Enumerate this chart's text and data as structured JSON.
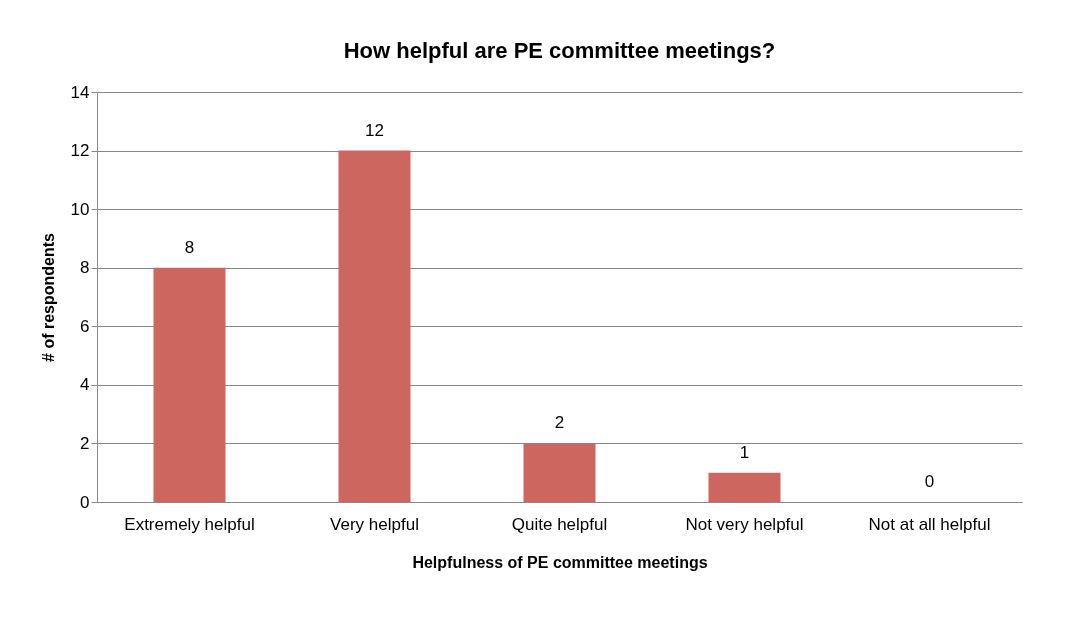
{
  "chart_data": {
    "type": "bar",
    "title": "How helpful are PE committee meetings?",
    "xlabel": "Helpfulness of PE committee meetings",
    "ylabel": "# of respondents",
    "categories": [
      "Extremely helpful",
      "Very helpful",
      "Quite helpful",
      "Not very helpful",
      "Not at all helpful"
    ],
    "values": [
      8,
      12,
      2,
      1,
      0
    ],
    "color": "#cd665f",
    "ylim": [
      0,
      14
    ],
    "yticks": [
      0,
      2,
      4,
      6,
      8,
      10,
      12,
      14
    ],
    "grid": "y",
    "data_labels": true
  }
}
